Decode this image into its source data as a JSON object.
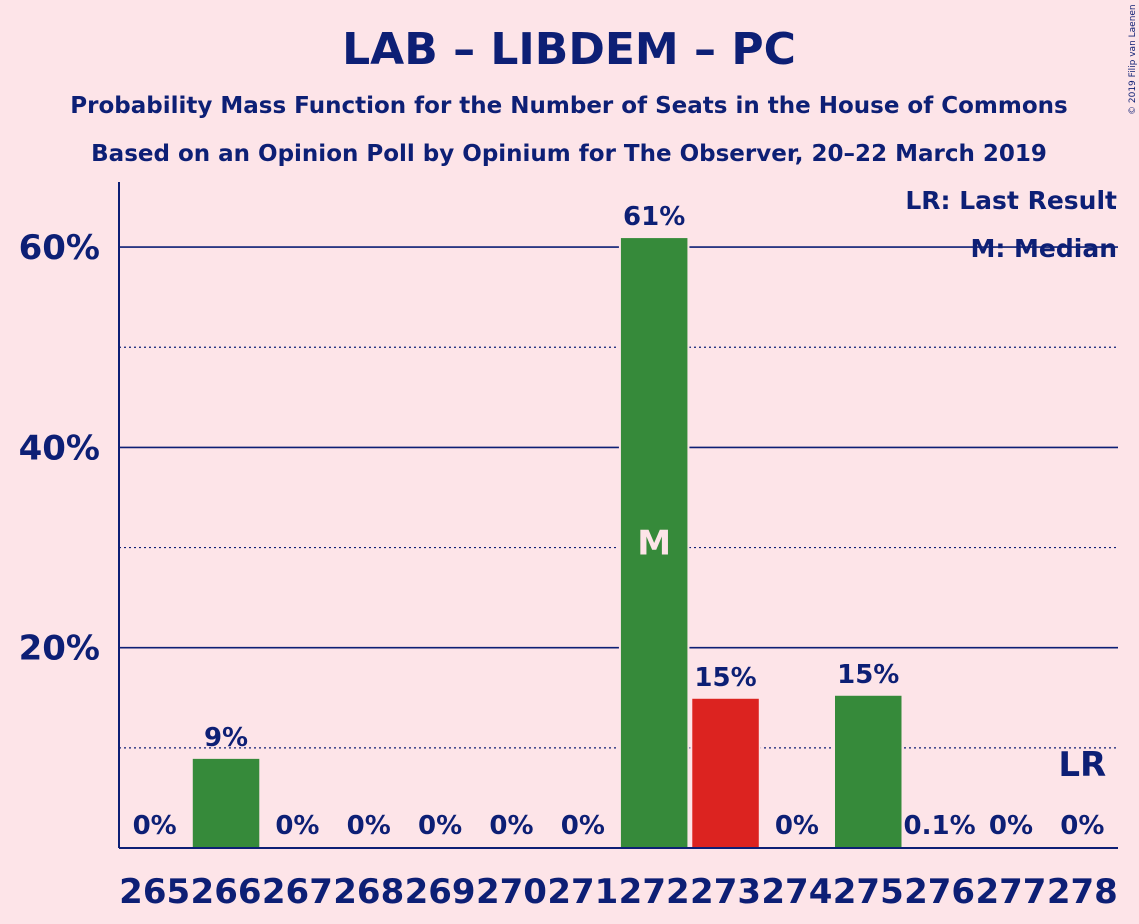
{
  "chart_data": {
    "type": "bar",
    "title": "LAB – LIBDEM – PC",
    "subtitle1": "Probability Mass Function for the Number of Seats in the House of Commons",
    "subtitle2": "Based on an Opinion Poll by Opinium for The Observer, 20–22 March 2019",
    "categories": [
      "265",
      "266",
      "267",
      "268",
      "269",
      "270",
      "271",
      "272",
      "273",
      "274",
      "275",
      "276",
      "277",
      "278"
    ],
    "values": [
      0,
      9,
      0,
      0,
      0,
      0,
      0,
      61,
      15,
      0,
      15.3,
      0.1,
      0,
      0
    ],
    "data_labels": [
      "0%",
      "9%",
      "0%",
      "0%",
      "0%",
      "0%",
      "0%",
      "61%",
      "15%",
      "0%",
      "15%",
      "0.1%",
      "0%",
      "0%"
    ],
    "bar_colors": [
      "#368a3a",
      "#368a3a",
      "#368a3a",
      "#368a3a",
      "#368a3a",
      "#368a3a",
      "#368a3a",
      "#368a3a",
      "#dc2320",
      "#368a3a",
      "#368a3a",
      "#368a3a",
      "#368a3a",
      "#368a3a"
    ],
    "ylim": [
      0,
      66.5
    ],
    "yticks": [
      20,
      40,
      60
    ],
    "ytick_labels": [
      "20%",
      "40%",
      "60%"
    ],
    "minor_gridlines": [
      10,
      30,
      50
    ],
    "grid": true,
    "median_category": "272",
    "median_marker": "M",
    "last_result_category": "278",
    "last_result_marker": "LR",
    "legend": [
      "LR: Last Result",
      "M: Median"
    ],
    "legend_position": "top-right",
    "copyright": "© 2019 Filip van Laenen",
    "colors": {
      "background": "#fde4e8",
      "text": "#0d1f75",
      "green": "#368a3a",
      "red": "#dc2320"
    }
  }
}
